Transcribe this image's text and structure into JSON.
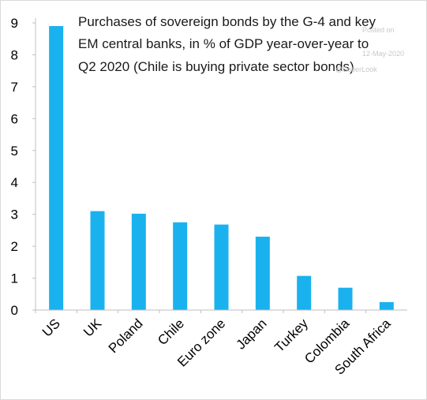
{
  "chart_data": {
    "type": "bar",
    "title_lines": [
      "Purchases of sovereign bonds by the G-4 and key",
      "EM central banks, in % of GDP year-over-year to",
      "Q2 2020  (Chile is buying private sector bonds)"
    ],
    "categories": [
      "US",
      "UK",
      "Poland",
      "Chile",
      "Euro zone",
      "Japan",
      "Turkey",
      "Colombia",
      "South Africa"
    ],
    "values": [
      8.9,
      3.1,
      3.02,
      2.75,
      2.68,
      2.3,
      1.07,
      0.7,
      0.25
    ],
    "ylim": [
      0,
      9
    ],
    "yticks": [
      0,
      1,
      2,
      3,
      4,
      5,
      6,
      7,
      8,
      9
    ],
    "xlabel": "",
    "ylabel": "",
    "grid": false,
    "bar_color": "#1ab2ee",
    "axis_color": "#bfbfbf"
  },
  "watermark": {
    "line1": "Posted on",
    "line2": "12-May-2020",
    "line3": "@SoberLook"
  }
}
